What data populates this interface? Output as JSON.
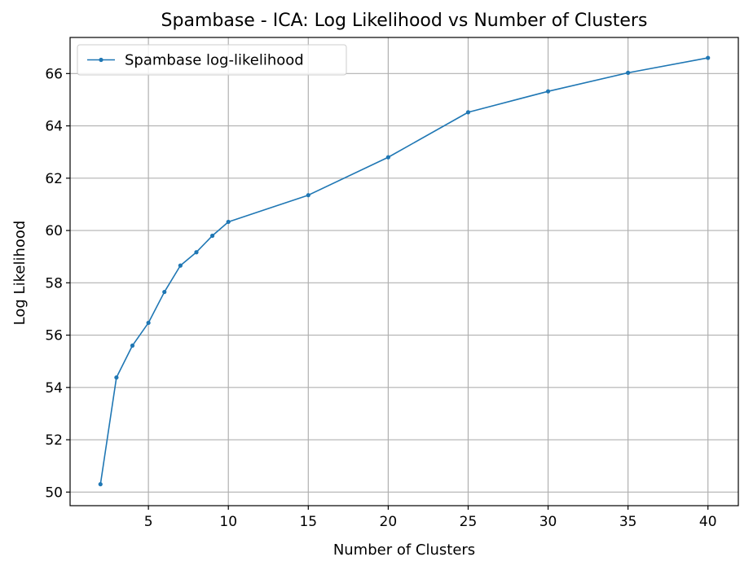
{
  "chart_data": {
    "type": "line",
    "title": "Spambase - ICA: Log Likelihood vs Number of Clusters",
    "xlabel": "Number of Clusters",
    "ylabel": "Log Likelihood",
    "xlim": [
      0.1,
      41.9
    ],
    "ylim": [
      49.48,
      67.38
    ],
    "xticks": [
      5,
      10,
      15,
      20,
      25,
      30,
      35,
      40
    ],
    "yticks": [
      50,
      52,
      54,
      56,
      58,
      60,
      62,
      64,
      66
    ],
    "grid": true,
    "legend_position": "top-left",
    "series": [
      {
        "name": "Spambase log-likelihood",
        "color": "#1f77b4",
        "marker": "circle",
        "x": [
          2,
          3,
          4,
          5,
          6,
          7,
          8,
          9,
          10,
          15,
          20,
          25,
          30,
          35,
          40
        ],
        "y": [
          50.3,
          54.38,
          55.6,
          56.47,
          57.65,
          58.66,
          59.17,
          59.8,
          60.33,
          61.35,
          62.8,
          64.52,
          65.32,
          66.03,
          66.6
        ]
      }
    ]
  }
}
